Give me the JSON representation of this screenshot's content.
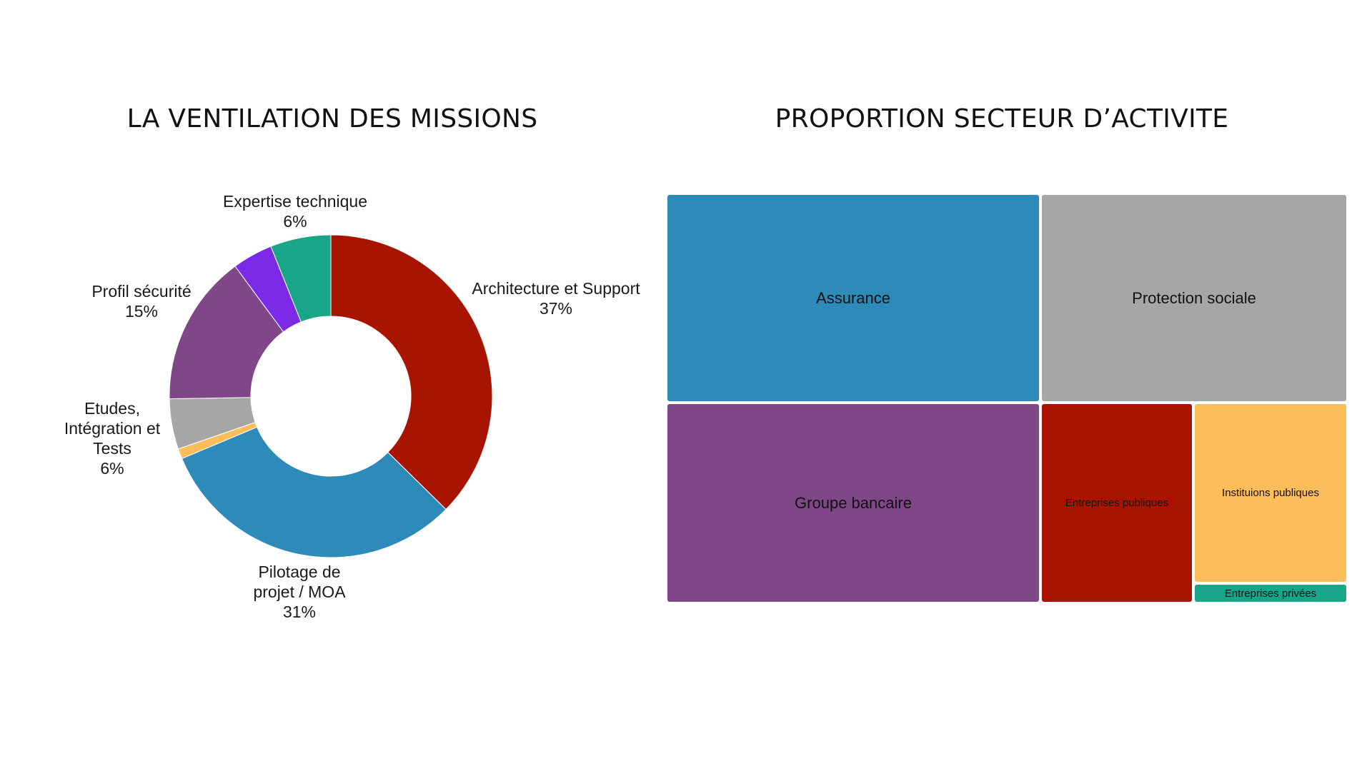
{
  "titles": {
    "left": "LA VENTILATION DES MISSIONS",
    "right": "PROPORTION SECTEUR D’ACTIVITE"
  },
  "chart_data": [
    {
      "type": "pie",
      "title": "LA VENTILATION DES MISSIONS",
      "donut": true,
      "slices": [
        {
          "name": "Architecture et Support",
          "value": 37,
          "label": "37%",
          "color": "#a91400"
        },
        {
          "name": "Pilotage de projet / MOA",
          "value": 31,
          "label": "31%",
          "color": "#2e8bb9"
        },
        {
          "name": "Etudes, Intégration et Tests",
          "value": 1,
          "label": "",
          "color": "#fcbd5a"
        },
        {
          "name": "Etudes, Intégration et Tests",
          "value": 5,
          "label": "6%",
          "color": "#a6a6a6"
        },
        {
          "name": "Profil sécurité",
          "value": 15,
          "label": "15%",
          "color": "#7f4788"
        },
        {
          "name": "",
          "value": 4,
          "label": "",
          "color": "#7b2ae8"
        },
        {
          "name": "Expertise technique",
          "value": 6,
          "label": "6%",
          "color": "#19a688"
        }
      ],
      "labels": {
        "architecture": {
          "name": "Architecture et Support",
          "pct": "37%"
        },
        "pilotage": {
          "name1": "Pilotage de",
          "name2": "projet / MOA",
          "pct": "31%"
        },
        "etudes": {
          "name1": "Etudes,",
          "name2": "Intégration et",
          "name3": "Tests",
          "pct": "6%"
        },
        "securite": {
          "name": "Profil sécurité",
          "pct": "15%"
        },
        "expertise": {
          "name": "Expertise technique",
          "pct": "6%"
        }
      }
    },
    {
      "type": "treemap",
      "title": "PROPORTION SECTEUR D’ACTIVITE",
      "items": [
        {
          "name": "Assurance",
          "value": 29,
          "color": "#2e8bb9"
        },
        {
          "name": "Protection sociale",
          "value": 24,
          "color": "#a6a6a6"
        },
        {
          "name": "Groupe bancaire",
          "value": 27,
          "color": "#7f4788"
        },
        {
          "name": "Entreprises publiques",
          "value": 11,
          "color": "#a91400"
        },
        {
          "name": "Instituions publiques",
          "value": 9,
          "color": "#fcbd5a"
        },
        {
          "name": "Entreprises privées",
          "value": 1,
          "color": "#19a688"
        }
      ]
    }
  ]
}
